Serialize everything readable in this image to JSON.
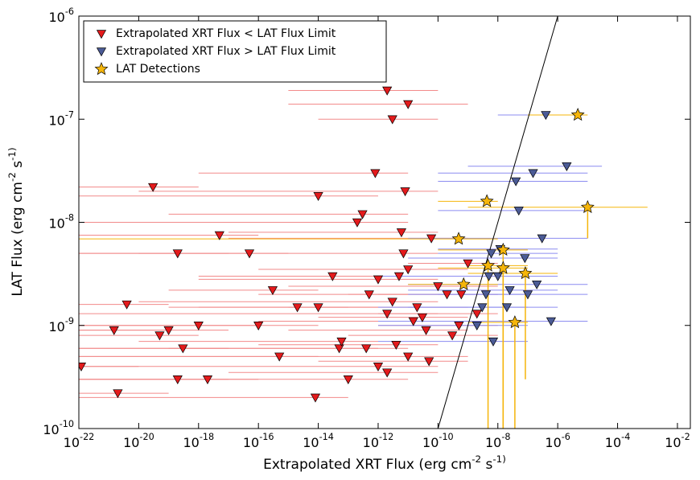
{
  "chart_data": {
    "type": "scatter",
    "x_label": "Extrapolated XRT Flux (erg cm^-2 s^-1)",
    "y_label": "LAT Flux (erg cm^-2 s^-1)",
    "log_x": true,
    "log_y": true,
    "grid": false,
    "legend": "upper left",
    "xlim": [
      1e-22,
      0.027
    ],
    "ylim": [
      1e-10,
      1e-06
    ],
    "xticks": [
      {
        "value": 1e-22,
        "label": "10^-22"
      },
      {
        "value": 1e-20,
        "label": "10^-20"
      },
      {
        "value": 1e-18,
        "label": "10^-18"
      },
      {
        "value": 1e-16,
        "label": "10^-16"
      },
      {
        "value": 1e-14,
        "label": "10^-14"
      },
      {
        "value": 1e-12,
        "label": "10^-12"
      },
      {
        "value": 1e-10,
        "label": "10^-10"
      },
      {
        "value": 1e-08,
        "label": "10^-8"
      },
      {
        "value": 1e-06,
        "label": "10^-6"
      },
      {
        "value": 0.0001,
        "label": "10^-4"
      },
      {
        "value": 0.01,
        "label": "10^-2"
      }
    ],
    "yticks": [
      {
        "value": 1e-10,
        "label": "10^-10"
      },
      {
        "value": 1e-09,
        "label": "10^-9"
      },
      {
        "value": 1e-08,
        "label": "10^-8"
      },
      {
        "value": 1e-07,
        "label": "10^-7"
      },
      {
        "value": 1e-06,
        "label": "10^-6"
      }
    ],
    "reference_line": {
      "x": [
        1e-10,
        1e-06
      ],
      "y": [
        1e-10,
        1e-06
      ],
      "color": "#000000"
    },
    "series": [
      {
        "name": "Extrapolated XRT Flux < LAT Flux Limit",
        "marker": "triangle",
        "color": "#e41a1c",
        "error_color": "#f28a8a",
        "x": [
          1.2e-22,
          2e-21,
          4e-21,
          1.5e-21,
          5e-20,
          3e-20,
          1e-19,
          3e-19,
          2e-19,
          1e-18,
          2e-19,
          2e-18,
          5e-18,
          5e-17,
          1e-16,
          3e-16,
          5e-16,
          2e-15,
          8e-15,
          1e-14,
          3e-14,
          5e-14,
          1e-14,
          2e-13,
          5e-13,
          1e-12,
          2e-12,
          5e-12,
          8e-12,
          1e-11,
          3e-11,
          6e-11,
          1e-10,
          3e-10,
          5e-10,
          1e-11,
          2e-12,
          4e-13,
          6e-12,
          2e-11,
          5e-11,
          2e-10,
          8e-13,
          3e-12,
          1.5e-11,
          4e-11,
          7e-12,
          1e-12,
          3e-13,
          1e-13,
          6e-14,
          2e-12,
          4e-12,
          1e-11,
          3e-12,
          6e-10,
          1e-09,
          2e-09
        ],
        "values": [
          4e-10,
          2.2e-10,
          1.6e-09,
          9e-10,
          8e-10,
          2.2e-08,
          9e-10,
          6e-10,
          3e-10,
          1e-09,
          5e-09,
          3e-10,
          7.5e-09,
          5e-09,
          1e-09,
          2.2e-09,
          5e-10,
          1.5e-09,
          2e-10,
          1.8e-08,
          3e-09,
          6e-10,
          1.5e-09,
          1e-08,
          2e-09,
          4e-10,
          1.9e-07,
          3e-09,
          2e-08,
          5e-10,
          1.2e-09,
          7e-09,
          2.4e-09,
          8e-10,
          1e-09,
          3.5e-09,
          1.3e-09,
          6e-10,
          8e-09,
          1.5e-09,
          4.5e-10,
          2e-09,
          3e-08,
          1.7e-09,
          1.1e-09,
          9e-10,
          5e-09,
          2.8e-09,
          1.2e-08,
          3e-10,
          7e-10,
          3.5e-10,
          6.5e-10,
          1.4e-07,
          1e-07,
          2e-09,
          4e-09,
          1.3e-09
        ],
        "xmin": [
          1e-22,
          1e-22,
          1e-22,
          1e-22,
          1e-22,
          1e-22,
          1e-22,
          1e-22,
          1e-22,
          1e-22,
          1e-22,
          1e-22,
          1e-22,
          1e-20,
          1e-22,
          1e-19,
          1e-22,
          1e-18,
          1e-22,
          1e-22,
          1e-17,
          1e-22,
          1e-19,
          1e-22,
          1e-16,
          1e-22,
          1e-15,
          1e-18,
          1e-20,
          1e-22,
          1e-14,
          1e-17,
          1e-15,
          1e-13,
          1e-12,
          1e-16,
          1e-22,
          1e-19,
          1e-17,
          1e-15,
          1e-14,
          1e-13,
          1e-18,
          1e-20,
          1e-16,
          1e-15,
          1e-22,
          1e-18,
          1e-19,
          1e-22,
          1e-20,
          1e-17,
          1e-16,
          1e-15,
          1e-14,
          1e-12,
          1e-11,
          1e-12
        ],
        "xmax": [
          1e-20,
          1e-19,
          1e-19,
          1e-19,
          1e-18,
          1e-18,
          1e-17,
          1e-17,
          1e-17,
          1e-16,
          1e-17,
          1e-16,
          1e-16,
          1e-15,
          1e-14,
          1e-14,
          1e-14,
          1e-13,
          1e-13,
          1e-12,
          1e-12,
          1e-12,
          1e-12,
          1e-11,
          1e-11,
          1e-10,
          1e-10,
          1e-10,
          1e-10,
          1e-09,
          1e-09,
          1e-09,
          1e-08,
          1e-08,
          1e-08,
          1e-09,
          1e-10,
          1e-11,
          1e-10,
          1e-09,
          1e-09,
          1e-08,
          1e-11,
          1e-10,
          1e-09,
          1e-09,
          1e-10,
          1e-10,
          1e-11,
          1e-11,
          1e-12,
          1e-10,
          1e-10,
          1e-09,
          1e-10,
          1e-08,
          1e-08,
          1e-08
        ]
      },
      {
        "name": "Extrapolated XRT Flux > LAT Flux Limit",
        "marker": "triangle",
        "color": "#4b5b96",
        "error_color": "#8c8cf0",
        "x": [
          2e-09,
          4e-09,
          6e-09,
          1e-08,
          2e-08,
          4e-08,
          8e-08,
          1.5e-07,
          3e-07,
          6e-07,
          2e-06,
          3e-09,
          5e-09,
          1.2e-08,
          2.5e-08,
          5e-08,
          1e-07,
          2e-07,
          7e-09,
          4e-07
        ],
        "values": [
          1e-09,
          2e-09,
          5e-09,
          3e-09,
          1.5e-09,
          2.5e-08,
          4.5e-09,
          3e-08,
          7e-09,
          1.1e-09,
          3.5e-08,
          1.5e-09,
          3e-09,
          5.5e-09,
          2.2e-09,
          1.3e-08,
          2e-09,
          2.5e-09,
          7e-10,
          1.1e-07
        ],
        "xmin": [
          1e-12,
          1e-11,
          1e-10,
          1e-11,
          1e-12,
          1e-10,
          1e-11,
          1e-10,
          1e-11,
          1e-12,
          1e-09,
          1e-11,
          1e-12,
          1e-10,
          1e-11,
          1e-10,
          1e-10,
          1e-11,
          1e-12,
          1e-08
        ],
        "xmax": [
          1e-07,
          1e-07,
          1e-06,
          1e-06,
          1e-06,
          1e-05,
          1e-06,
          1e-05,
          1e-05,
          1e-05,
          3e-05,
          1e-07,
          1e-07,
          1e-06,
          1e-06,
          1e-05,
          1e-05,
          1e-05,
          1e-07,
          1e-06
        ]
      },
      {
        "name": "LAT Detections",
        "marker": "star",
        "color": "#f5b50a",
        "error_color": "#f5b50a",
        "x": [
          4.7e-06,
          1e-05,
          4.3e-09,
          4.9e-10,
          1.5e-08,
          4.7e-09,
          8.3e-08,
          7.2e-10,
          3.7e-08,
          1.5e-08
        ],
        "values": [
          1.1e-07,
          1.4e-08,
          1.6e-08,
          6.9e-09,
          5.4e-09,
          3.8e-09,
          3.2e-09,
          2.5e-09,
          1.07e-09,
          3.6e-09
        ],
        "xmin": [
          1e-07,
          1e-09,
          1e-10,
          1e-22,
          1e-10,
          1e-09,
          1e-09,
          1e-11,
          1e-09,
          1e-10
        ],
        "xmax": [
          1e-05,
          0.001,
          1e-08,
          1e-08,
          1e-07,
          1e-07,
          1e-06,
          1e-08,
          1e-07,
          1e-07
        ],
        "ymin": [
          null,
          7e-09,
          null,
          null,
          1e-10,
          1e-10,
          3e-10,
          null,
          1e-10,
          1e-10
        ]
      }
    ]
  }
}
